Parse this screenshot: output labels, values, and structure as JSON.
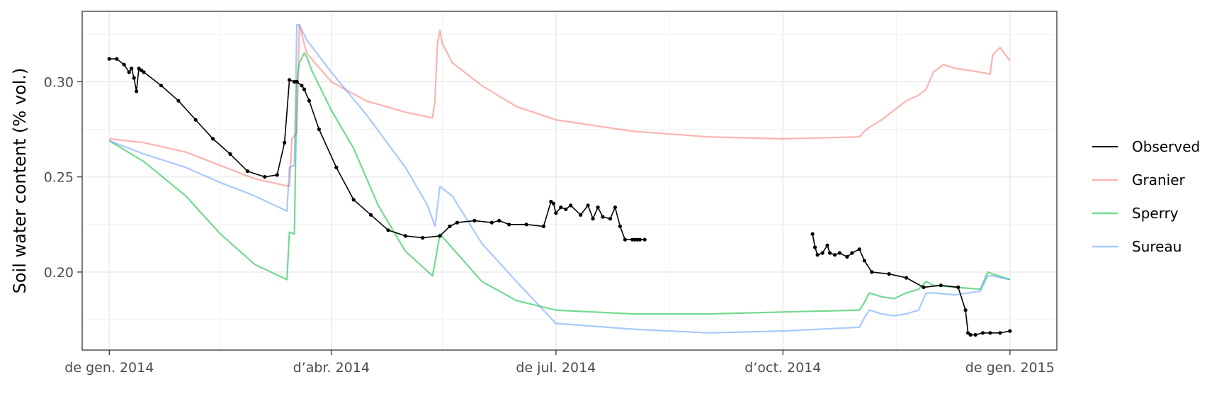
{
  "chart_data": {
    "type": "line",
    "title": "",
    "xlabel": "",
    "ylabel": "Soil water content (% vol.)",
    "x_ticks": [
      "de gen. 2014",
      "d’abr. 2014",
      "de jul. 2014",
      "d’oct. 2014",
      "de gen. 2015"
    ],
    "y_ticks": [
      "0.20",
      "0.25",
      "0.30"
    ],
    "xlim": [
      "2013-12-21",
      "2015-01-20"
    ],
    "ylim": [
      0.159,
      0.337
    ],
    "grid": true,
    "legend_position": "right",
    "series": [
      {
        "name": "Observed",
        "color": "#000000",
        "style": "line-with-points",
        "segments": [
          {
            "x": [
              "2014-01-01",
              "2014-01-04",
              "2014-01-07",
              "2014-01-09",
              "2014-01-10",
              "2014-01-11",
              "2014-01-12",
              "2014-01-13",
              "2014-01-14",
              "2014-01-15",
              "2014-01-22",
              "2014-01-29",
              "2014-02-05",
              "2014-02-12",
              "2014-02-19",
              "2014-02-26",
              "2014-03-05",
              "2014-03-10",
              "2014-03-13",
              "2014-03-15",
              "2014-03-17",
              "2014-03-18",
              "2014-03-20",
              "2014-03-21",
              "2014-03-23",
              "2014-03-27",
              "2014-04-03",
              "2014-04-10",
              "2014-04-17",
              "2014-04-24",
              "2014-05-01",
              "2014-05-08",
              "2014-05-15",
              "2014-05-19",
              "2014-05-22",
              "2014-05-29",
              "2014-06-05",
              "2014-06-08",
              "2014-06-12",
              "2014-06-19",
              "2014-06-26",
              "2014-06-29",
              "2014-06-30",
              "2014-07-01",
              "2014-07-03",
              "2014-07-05",
              "2014-07-07",
              "2014-07-11",
              "2014-07-14",
              "2014-07-16",
              "2014-07-18",
              "2014-07-20",
              "2014-07-23",
              "2014-07-25",
              "2014-07-27",
              "2014-07-29",
              "2014-08-01",
              "2014-08-02",
              "2014-08-03",
              "2014-08-04",
              "2014-08-06"
            ],
            "y": [
              0.312,
              0.312,
              0.309,
              0.305,
              0.307,
              0.302,
              0.295,
              0.307,
              0.306,
              0.305,
              0.298,
              0.29,
              0.28,
              0.27,
              0.262,
              0.253,
              0.25,
              0.251,
              0.268,
              0.301,
              0.3,
              0.3,
              0.298,
              0.296,
              0.29,
              0.275,
              0.255,
              0.238,
              0.23,
              0.222,
              0.219,
              0.218,
              0.219,
              0.224,
              0.226,
              0.227,
              0.226,
              0.227,
              0.225,
              0.225,
              0.224,
              0.237,
              0.236,
              0.231,
              0.234,
              0.233,
              0.235,
              0.23,
              0.235,
              0.228,
              0.234,
              0.229,
              0.228,
              0.234,
              0.224,
              0.217,
              0.217,
              0.217,
              0.217,
              0.217,
              0.217
            ]
          },
          {
            "x": [
              "2014-10-13",
              "2014-10-14",
              "2014-10-15",
              "2014-10-17",
              "2014-10-19",
              "2014-10-20",
              "2014-10-22",
              "2014-10-24",
              "2014-10-27",
              "2014-10-29",
              "2014-11-01",
              "2014-11-03",
              "2014-11-06",
              "2014-11-13",
              "2014-11-20",
              "2014-11-27",
              "2014-12-04",
              "2014-12-11",
              "2014-12-14",
              "2014-12-15",
              "2014-12-16",
              "2014-12-18",
              "2014-12-21",
              "2014-12-24",
              "2014-12-28",
              "2015-01-01"
            ],
            "y": [
              0.22,
              0.213,
              0.209,
              0.21,
              0.214,
              0.21,
              0.209,
              0.21,
              0.208,
              0.21,
              0.212,
              0.206,
              0.2,
              0.199,
              0.197,
              0.192,
              0.193,
              0.192,
              0.18,
              0.168,
              0.167,
              0.167,
              0.168,
              0.168,
              0.168,
              0.169
            ]
          }
        ]
      },
      {
        "name": "Granier",
        "color": "#f8766d",
        "x": [
          "2014-01-01",
          "2014-01-15",
          "2014-02-01",
          "2014-02-15",
          "2014-03-01",
          "2014-03-15",
          "2014-03-16",
          "2014-03-18",
          "2014-03-19",
          "2014-03-22",
          "2014-04-01",
          "2014-04-15",
          "2014-05-01",
          "2014-05-12",
          "2014-05-13",
          "2014-05-14",
          "2014-05-15",
          "2014-05-16",
          "2014-05-20",
          "2014-06-01",
          "2014-06-15",
          "2014-07-01",
          "2014-08-01",
          "2014-09-01",
          "2014-10-01",
          "2014-11-01",
          "2014-11-03",
          "2014-11-05",
          "2014-11-10",
          "2014-11-15",
          "2014-11-20",
          "2014-11-25",
          "2014-11-28",
          "2014-12-01",
          "2014-12-05",
          "2014-12-10",
          "2014-12-15",
          "2014-12-20",
          "2014-12-24",
          "2014-12-25",
          "2014-12-28",
          "2015-01-01"
        ],
        "y": [
          0.27,
          0.268,
          0.263,
          0.256,
          0.249,
          0.245,
          0.27,
          0.273,
          0.33,
          0.315,
          0.3,
          0.29,
          0.284,
          0.281,
          0.29,
          0.32,
          0.327,
          0.32,
          0.31,
          0.298,
          0.287,
          0.28,
          0.274,
          0.271,
          0.27,
          0.271,
          0.274,
          0.276,
          0.28,
          0.285,
          0.29,
          0.293,
          0.296,
          0.305,
          0.309,
          0.307,
          0.306,
          0.305,
          0.304,
          0.314,
          0.318,
          0.311
        ]
      },
      {
        "name": "Sperry",
        "color": "#00ba38",
        "x": [
          "2014-01-01",
          "2014-01-15",
          "2014-02-01",
          "2014-02-15",
          "2014-03-01",
          "2014-03-14",
          "2014-03-15",
          "2014-03-17",
          "2014-03-18",
          "2014-03-19",
          "2014-03-21",
          "2014-03-22",
          "2014-03-24",
          "2014-04-01",
          "2014-04-10",
          "2014-04-20",
          "2014-05-01",
          "2014-05-12",
          "2014-05-13",
          "2014-05-15",
          "2014-06-01",
          "2014-06-15",
          "2014-07-01",
          "2014-08-01",
          "2014-09-01",
          "2014-10-01",
          "2014-11-01",
          "2014-11-03",
          "2014-11-05",
          "2014-11-10",
          "2014-11-15",
          "2014-11-20",
          "2014-11-25",
          "2014-11-28",
          "2014-12-01",
          "2014-12-10",
          "2014-12-20",
          "2014-12-23",
          "2014-12-25",
          "2015-01-01"
        ],
        "y": [
          0.269,
          0.258,
          0.24,
          0.22,
          0.204,
          0.196,
          0.221,
          0.22,
          0.3,
          0.31,
          0.315,
          0.313,
          0.306,
          0.285,
          0.265,
          0.235,
          0.211,
          0.198,
          0.205,
          0.22,
          0.195,
          0.185,
          0.18,
          0.178,
          0.178,
          0.179,
          0.18,
          0.184,
          0.189,
          0.187,
          0.186,
          0.189,
          0.191,
          0.195,
          0.193,
          0.192,
          0.191,
          0.2,
          0.199,
          0.196
        ]
      },
      {
        "name": "Sureau",
        "color": "#619cff",
        "x": [
          "2014-01-01",
          "2014-01-15",
          "2014-02-01",
          "2014-02-15",
          "2014-03-01",
          "2014-03-14",
          "2014-03-15",
          "2014-03-17",
          "2014-03-18",
          "2014-03-19",
          "2014-03-22",
          "2014-04-01",
          "2014-04-15",
          "2014-05-01",
          "2014-05-10",
          "2014-05-13",
          "2014-05-15",
          "2014-05-20",
          "2014-06-01",
          "2014-06-15",
          "2014-07-01",
          "2014-08-01",
          "2014-09-01",
          "2014-10-01",
          "2014-11-01",
          "2014-11-03",
          "2014-11-05",
          "2014-11-10",
          "2014-11-15",
          "2014-11-20",
          "2014-11-25",
          "2014-11-28",
          "2014-12-01",
          "2014-12-10",
          "2014-12-20",
          "2014-12-23",
          "2014-12-25",
          "2015-01-01"
        ],
        "y": [
          0.269,
          0.262,
          0.255,
          0.247,
          0.24,
          0.232,
          0.255,
          0.256,
          0.33,
          0.33,
          0.322,
          0.305,
          0.283,
          0.255,
          0.235,
          0.224,
          0.245,
          0.24,
          0.215,
          0.195,
          0.173,
          0.17,
          0.168,
          0.169,
          0.171,
          0.176,
          0.18,
          0.178,
          0.177,
          0.178,
          0.18,
          0.189,
          0.189,
          0.188,
          0.19,
          0.198,
          0.198,
          0.196
        ]
      }
    ]
  }
}
